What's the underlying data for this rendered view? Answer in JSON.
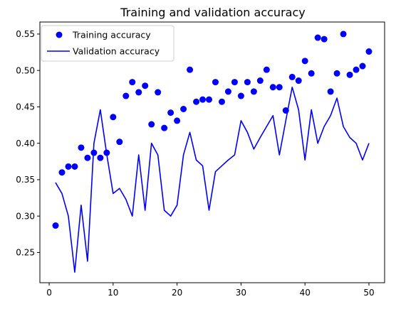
{
  "chart_data": {
    "type": "line",
    "title": "Training and validation accuracy",
    "xlabel": "",
    "ylabel": "",
    "xlim": [
      -1.45,
      52.45
    ],
    "ylim": [
      0.2085,
      0.5665
    ],
    "xticks": [
      0,
      10,
      20,
      30,
      40,
      50
    ],
    "xtick_labels": [
      "0",
      "10",
      "20",
      "30",
      "40",
      "50"
    ],
    "yticks": [
      0.25,
      0.3,
      0.35,
      0.4,
      0.45,
      0.5,
      0.55
    ],
    "ytick_labels": [
      "0.25",
      "0.30",
      "0.35",
      "0.40",
      "0.45",
      "0.50",
      "0.55"
    ],
    "grid": false,
    "legend_position": "top-left",
    "colors": {
      "series": "#0000ff"
    },
    "series": [
      {
        "name": "Training accuracy",
        "style": "markers",
        "x": [
          1,
          2,
          3,
          4,
          5,
          6,
          7,
          8,
          9,
          10,
          11,
          12,
          13,
          14,
          15,
          16,
          17,
          18,
          19,
          20,
          21,
          22,
          23,
          24,
          25,
          26,
          27,
          28,
          29,
          30,
          31,
          32,
          33,
          34,
          35,
          36,
          37,
          38,
          39,
          40,
          41,
          42,
          43,
          44,
          45,
          46,
          47,
          48,
          49,
          50
        ],
        "values": [
          0.287,
          0.36,
          0.368,
          0.368,
          0.394,
          0.38,
          0.387,
          0.38,
          0.387,
          0.436,
          0.402,
          0.465,
          0.484,
          0.47,
          0.479,
          0.426,
          0.47,
          0.421,
          0.442,
          0.431,
          0.447,
          0.501,
          0.457,
          0.46,
          0.46,
          0.484,
          0.457,
          0.471,
          0.484,
          0.465,
          0.484,
          0.471,
          0.486,
          0.501,
          0.477,
          0.477,
          0.445,
          0.491,
          0.486,
          0.513,
          0.496,
          0.545,
          0.543,
          0.471,
          0.496,
          0.55,
          0.494,
          0.501,
          0.506,
          0.526
        ]
      },
      {
        "name": "Validation accuracy",
        "style": "line",
        "x": [
          1,
          2,
          3,
          4,
          5,
          6,
          7,
          8,
          9,
          10,
          11,
          12,
          13,
          14,
          15,
          16,
          17,
          18,
          19,
          20,
          21,
          22,
          23,
          24,
          25,
          26,
          27,
          28,
          29,
          30,
          31,
          32,
          33,
          34,
          35,
          36,
          37,
          38,
          39,
          40,
          41,
          42,
          43,
          44,
          45,
          46,
          47,
          48,
          49,
          50
        ],
        "values": [
          0.346,
          0.331,
          0.3,
          0.223,
          0.315,
          0.238,
          0.4,
          0.446,
          0.385,
          0.331,
          0.338,
          0.323,
          0.3,
          0.384,
          0.308,
          0.4,
          0.384,
          0.308,
          0.3,
          0.315,
          0.384,
          0.415,
          0.377,
          0.369,
          0.308,
          0.361,
          0.369,
          0.377,
          0.384,
          0.431,
          0.415,
          0.392,
          0.408,
          0.423,
          0.438,
          0.384,
          0.431,
          0.477,
          0.446,
          0.377,
          0.446,
          0.4,
          0.423,
          0.438,
          0.462,
          0.423,
          0.408,
          0.4,
          0.377,
          0.4
        ]
      }
    ]
  }
}
